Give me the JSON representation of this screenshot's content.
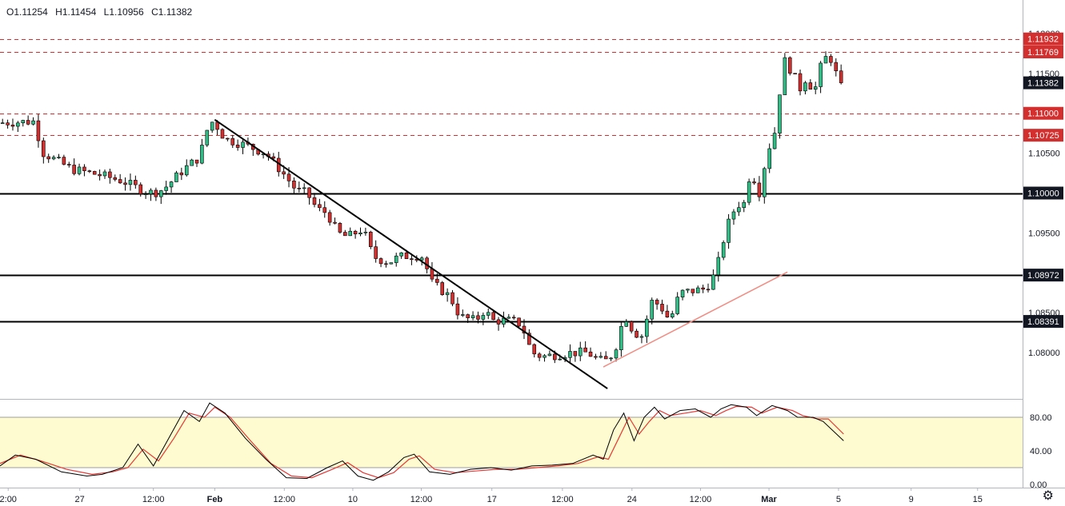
{
  "ohlc": {
    "open": "O1.11254",
    "high": "H1.11454",
    "low": "L1.10956",
    "close": "C1.11382"
  },
  "colors": {
    "bull": "#26a69a",
    "bear": "#ef5350",
    "bull_fill": "#2ebd85",
    "bear_fill": "#d32f2f",
    "dashed": "#d32f2f",
    "support": "#000000",
    "uptrend": "#f28b82",
    "stoch_k": "#000000",
    "stoch_d": "#e53935",
    "stoch_band": "#fdfbcf"
  },
  "settings_icon": "gear-icon",
  "chart_data": [
    {
      "type": "candlestick",
      "xlim": [
        0,
        100
      ],
      "ylim": [
        1.0742,
        1.1242
      ],
      "grid": false,
      "x_tick_labels": [
        {
          "x": 0.8,
          "label": "2:00"
        },
        {
          "x": 7.8,
          "label": "27"
        },
        {
          "x": 15,
          "label": "12:00"
        },
        {
          "x": 21,
          "label": "Feb"
        },
        {
          "x": 27.8,
          "label": "12:00"
        },
        {
          "x": 34.5,
          "label": "10"
        },
        {
          "x": 41.2,
          "label": "12:00"
        },
        {
          "x": 48.1,
          "label": "17"
        },
        {
          "x": 55,
          "label": "12:00"
        },
        {
          "x": 61.8,
          "label": "24"
        },
        {
          "x": 68.5,
          "label": "12:00"
        },
        {
          "x": 75.2,
          "label": "Mar"
        },
        {
          "x": 82,
          "label": "5"
        },
        {
          "x": 89.1,
          "label": "9"
        },
        {
          "x": 95.6,
          "label": "15"
        }
      ],
      "price_ticks": [
        "1.12000",
        "1.11500",
        "1.10500",
        "1.09500",
        "1.08500",
        "1.08000"
      ],
      "price_labels": [
        {
          "value": 1.11932,
          "label": "1.11932",
          "style": "red"
        },
        {
          "value": 1.11769,
          "label": "1.11769",
          "style": "red"
        },
        {
          "value": 1.11382,
          "label": "1.11382",
          "style": "dark"
        },
        {
          "value": 1.11,
          "label": "1.11000",
          "style": "red"
        },
        {
          "value": 1.10725,
          "label": "1.10725",
          "style": "red"
        },
        {
          "value": 1.1,
          "label": "1.10000",
          "style": "dark"
        },
        {
          "value": 1.08972,
          "label": "1.08972",
          "style": "dark"
        },
        {
          "value": 1.08391,
          "label": "1.08391",
          "style": "dark"
        }
      ],
      "horizontal_levels": [
        {
          "value": 1.11932,
          "style": "dashed"
        },
        {
          "value": 1.11769,
          "style": "dashed"
        },
        {
          "value": 1.11,
          "style": "dashed"
        },
        {
          "value": 1.10725,
          "style": "dashed"
        },
        {
          "value": 1.1,
          "style": "solid"
        },
        {
          "value": 1.08972,
          "style": "solid"
        },
        {
          "value": 1.08391,
          "style": "solid"
        }
      ],
      "trendlines": [
        {
          "name": "downtrend",
          "from": [
            21,
            1.1092
          ],
          "to": [
            59.4,
            1.0755
          ],
          "color": "#000000"
        },
        {
          "name": "uptrend",
          "from": [
            59,
            1.0782
          ],
          "to": [
            77,
            1.0901
          ],
          "color": "#f28b82"
        }
      ],
      "anchors": [
        [
          0,
          1.1088
        ],
        [
          3.5,
          1.109
        ],
        [
          4,
          1.1052
        ],
        [
          7,
          1.103
        ],
        [
          10,
          1.1022
        ],
        [
          12,
          1.1015
        ],
        [
          14,
          1.1003
        ],
        [
          15,
          1.1
        ],
        [
          16,
          1.1005
        ],
        [
          18,
          1.103
        ],
        [
          19.5,
          1.1045
        ],
        [
          20.5,
          1.109
        ],
        [
          21,
          1.1088
        ],
        [
          22,
          1.1068
        ],
        [
          24,
          1.106
        ],
        [
          26,
          1.105
        ],
        [
          28,
          1.102
        ],
        [
          29,
          1.1003
        ],
        [
          30,
          1.1
        ],
        [
          31,
          1.098
        ],
        [
          32,
          1.0975
        ],
        [
          33,
          1.095
        ],
        [
          34,
          1.0945
        ],
        [
          35.5,
          1.0955
        ],
        [
          36.5,
          1.092
        ],
        [
          38,
          1.0913
        ],
        [
          39,
          1.092
        ],
        [
          40.5,
          1.0922
        ],
        [
          41.5,
          1.092
        ],
        [
          42,
          1.089
        ],
        [
          43,
          1.088
        ],
        [
          44,
          1.087
        ],
        [
          45,
          1.0845
        ],
        [
          46.5,
          1.084
        ],
        [
          47.5,
          1.0855
        ],
        [
          48,
          1.084
        ],
        [
          50,
          1.084
        ],
        [
          51,
          1.0835
        ],
        [
          52,
          1.08
        ],
        [
          53,
          1.0795
        ],
        [
          56,
          1.08
        ],
        [
          57.5,
          1.08
        ],
        [
          58.5,
          1.079
        ],
        [
          59.5,
          1.079
        ],
        [
          60.5,
          1.0815
        ],
        [
          61,
          1.085
        ],
        [
          62,
          1.0825
        ],
        [
          63,
          1.082
        ],
        [
          63.5,
          1.0865
        ],
        [
          64.5,
          1.086
        ],
        [
          65.5,
          1.084
        ],
        [
          66.5,
          1.0875
        ],
        [
          68,
          1.0878
        ],
        [
          69,
          1.088
        ],
        [
          70,
          1.09
        ],
        [
          71,
          1.0955
        ],
        [
          72,
          1.0985
        ],
        [
          73,
          1.0988
        ],
        [
          73.5,
          1.105
        ],
        [
          74,
          1.0985
        ],
        [
          75,
          1.105
        ],
        [
          76,
          1.1085
        ],
        [
          76.5,
          1.117
        ],
        [
          77.3,
          1.1155
        ],
        [
          78.3,
          1.113
        ],
        [
          79,
          1.115
        ],
        [
          79.5,
          1.112
        ],
        [
          80.5,
          1.117
        ],
        [
          81.3,
          1.1168
        ],
        [
          82,
          1.114
        ],
        [
          82.5,
          1.1138
        ]
      ]
    },
    {
      "type": "line",
      "name": "stochastic",
      "ylim": [
        0,
        100
      ],
      "y_ticks": [
        "80.00",
        "40.00",
        "0.00"
      ],
      "band": [
        20,
        80
      ],
      "k_series": [
        [
          0,
          22
        ],
        [
          1.5,
          35
        ],
        [
          3.5,
          30
        ],
        [
          6,
          15
        ],
        [
          8.5,
          10
        ],
        [
          10,
          12
        ],
        [
          12,
          20
        ],
        [
          13.5,
          48
        ],
        [
          15,
          22
        ],
        [
          16.5,
          55
        ],
        [
          18,
          88
        ],
        [
          19.5,
          75
        ],
        [
          20.5,
          97
        ],
        [
          22,
          85
        ],
        [
          24,
          55
        ],
        [
          26,
          30
        ],
        [
          28,
          8
        ],
        [
          30,
          7
        ],
        [
          32,
          20
        ],
        [
          33.5,
          28
        ],
        [
          35,
          10
        ],
        [
          36.5,
          5
        ],
        [
          38,
          15
        ],
        [
          39.5,
          32
        ],
        [
          40.5,
          36
        ],
        [
          42,
          15
        ],
        [
          44,
          12
        ],
        [
          46,
          18
        ],
        [
          48,
          20
        ],
        [
          50,
          17
        ],
        [
          52,
          22
        ],
        [
          54,
          23
        ],
        [
          56,
          25
        ],
        [
          58,
          35
        ],
        [
          59,
          30
        ],
        [
          60,
          65
        ],
        [
          61,
          85
        ],
        [
          62,
          52
        ],
        [
          63,
          80
        ],
        [
          64,
          92
        ],
        [
          65,
          78
        ],
        [
          66.5,
          88
        ],
        [
          68,
          90
        ],
        [
          69.5,
          80
        ],
        [
          70.5,
          90
        ],
        [
          71.5,
          95
        ],
        [
          73,
          92
        ],
        [
          74,
          82
        ],
        [
          75.5,
          94
        ],
        [
          77,
          88
        ],
        [
          78,
          80
        ],
        [
          79.5,
          80
        ],
        [
          80.5,
          75
        ],
        [
          82.5,
          52
        ]
      ],
      "d_series": [
        [
          0,
          25
        ],
        [
          2,
          35
        ],
        [
          4,
          28
        ],
        [
          6.5,
          18
        ],
        [
          9,
          12
        ],
        [
          11,
          15
        ],
        [
          12.5,
          20
        ],
        [
          14,
          42
        ],
        [
          15.5,
          28
        ],
        [
          17,
          55
        ],
        [
          18.5,
          85
        ],
        [
          20,
          80
        ],
        [
          21,
          92
        ],
        [
          22.5,
          80
        ],
        [
          24.5,
          52
        ],
        [
          26.5,
          25
        ],
        [
          28.5,
          10
        ],
        [
          30.5,
          8
        ],
        [
          32.5,
          18
        ],
        [
          34,
          26
        ],
        [
          35.5,
          14
        ],
        [
          37,
          8
        ],
        [
          38.5,
          14
        ],
        [
          40,
          30
        ],
        [
          41,
          34
        ],
        [
          42.5,
          18
        ],
        [
          44.5,
          14
        ],
        [
          46.5,
          16
        ],
        [
          48.5,
          18
        ],
        [
          50.5,
          18
        ],
        [
          52.5,
          20
        ],
        [
          54.5,
          22
        ],
        [
          56.5,
          25
        ],
        [
          58.5,
          33
        ],
        [
          59.5,
          30
        ],
        [
          60.5,
          55
        ],
        [
          61.5,
          80
        ],
        [
          62.5,
          60
        ],
        [
          63.5,
          75
        ],
        [
          64.5,
          88
        ],
        [
          65.5,
          82
        ],
        [
          67,
          85
        ],
        [
          68.5,
          88
        ],
        [
          70,
          82
        ],
        [
          71,
          88
        ],
        [
          72,
          93
        ],
        [
          73.5,
          92
        ],
        [
          74.5,
          85
        ],
        [
          76,
          92
        ],
        [
          77.5,
          88
        ],
        [
          78.5,
          82
        ],
        [
          80,
          78
        ],
        [
          81,
          78
        ],
        [
          82.5,
          60
        ]
      ]
    }
  ]
}
